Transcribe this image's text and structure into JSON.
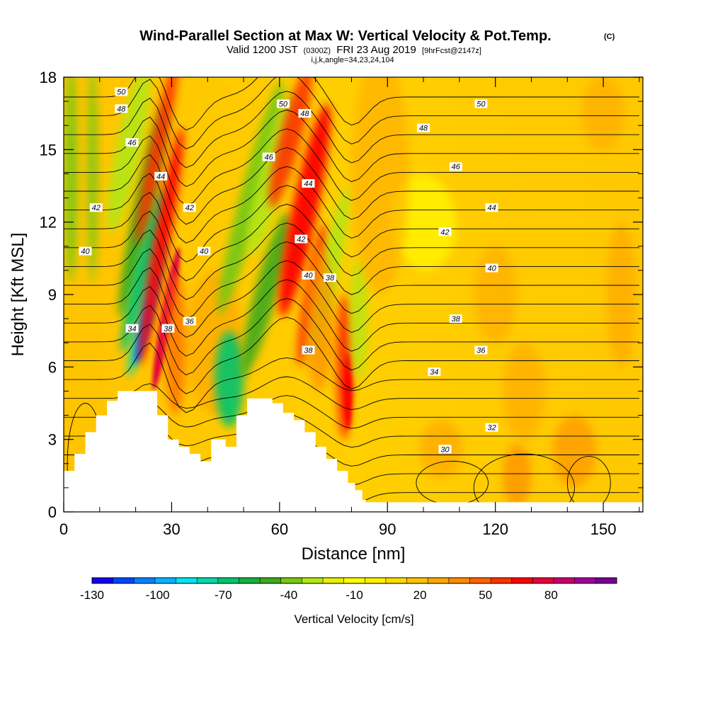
{
  "chart_data": {
    "type": "heatmap",
    "title": "Wind-Parallel Section at Max W: Vertical Velocity & Pot.Temp.",
    "title_mark": "(C)",
    "subtitle_prefix": "Valid 1200 JST",
    "subtitle_utc": "(0300Z)",
    "subtitle_date": "FRI 23 Aug 2019",
    "subtitle_fcst": "[9hrFcst@2147z]",
    "subtitle2": "i,j,k,angle=34,23,24,104",
    "xlabel": "Distance [nm]",
    "ylabel": "Height [Kft MSL]",
    "xlim": [
      0,
      161
    ],
    "ylim": [
      0,
      18
    ],
    "x_ticks": [
      "0",
      "30",
      "60",
      "90",
      "120",
      "150"
    ],
    "y_ticks": [
      "0",
      "3",
      "6",
      "9",
      "12",
      "15",
      "18"
    ],
    "colorbar": {
      "label": "Vertical Velocity [cm/s]",
      "tick_labels": [
        "-130",
        "-100",
        "-70",
        "-40",
        "-10",
        "20",
        "50",
        "80"
      ],
      "colors": [
        "#1400f0",
        "#0046ff",
        "#0082ff",
        "#00b4ff",
        "#00e6f0",
        "#00d8aa",
        "#00c46e",
        "#14b03c",
        "#3caa1e",
        "#78c814",
        "#b4e614",
        "#e6f000",
        "#ffff00",
        "#fff000",
        "#ffdc00",
        "#ffc300",
        "#ffa800",
        "#ff8c00",
        "#ff6400",
        "#ff3200",
        "#ff0000",
        "#e6003c",
        "#c8006e",
        "#a0009b",
        "#780096"
      ]
    },
    "terrain_kft": [
      [
        0,
        1.7
      ],
      [
        3,
        1.7
      ],
      [
        3,
        2.4
      ],
      [
        6,
        2.4
      ],
      [
        6,
        3.3
      ],
      [
        9,
        3.3
      ],
      [
        9,
        4.0
      ],
      [
        12,
        4.0
      ],
      [
        12,
        4.6
      ],
      [
        15,
        4.6
      ],
      [
        15,
        5.0
      ],
      [
        26,
        5.0
      ],
      [
        26,
        4.0
      ],
      [
        29,
        4.0
      ],
      [
        29,
        3.0
      ],
      [
        32,
        3.0
      ],
      [
        32,
        2.7
      ],
      [
        35,
        2.7
      ],
      [
        35,
        2.4
      ],
      [
        38,
        2.4
      ],
      [
        38,
        2.1
      ],
      [
        41,
        2.1
      ],
      [
        41,
        3.0
      ],
      [
        45,
        3.0
      ],
      [
        45,
        2.7
      ],
      [
        48,
        2.7
      ],
      [
        48,
        4.0
      ],
      [
        51,
        4.0
      ],
      [
        51,
        4.7
      ],
      [
        58,
        4.7
      ],
      [
        58,
        4.5
      ],
      [
        61,
        4.5
      ],
      [
        61,
        4.1
      ],
      [
        64,
        4.1
      ],
      [
        64,
        3.8
      ],
      [
        67,
        3.8
      ],
      [
        67,
        3.3
      ],
      [
        70,
        3.3
      ],
      [
        70,
        2.7
      ],
      [
        73,
        2.7
      ],
      [
        73,
        2.2
      ],
      [
        76,
        2.2
      ],
      [
        76,
        1.7
      ],
      [
        79,
        1.7
      ],
      [
        79,
        1.2
      ],
      [
        81,
        1.2
      ],
      [
        81,
        0.9
      ],
      [
        83,
        0.9
      ],
      [
        83,
        0.5
      ],
      [
        84,
        0.5
      ],
      [
        84,
        0.4
      ],
      [
        161,
        0.4
      ]
    ],
    "theta_contour_labels": [
      {
        "text": "50",
        "x": 16,
        "y": 17.4
      },
      {
        "text": "48",
        "x": 16,
        "y": 16.7
      },
      {
        "text": "46",
        "x": 19,
        "y": 15.3
      },
      {
        "text": "44",
        "x": 27,
        "y": 13.9
      },
      {
        "text": "42",
        "x": 9,
        "y": 12.6
      },
      {
        "text": "40",
        "x": 6,
        "y": 10.8
      },
      {
        "text": "34",
        "x": 19,
        "y": 7.6
      },
      {
        "text": "38",
        "x": 29,
        "y": 7.6
      },
      {
        "text": "36",
        "x": 35,
        "y": 7.9
      },
      {
        "text": "42",
        "x": 35,
        "y": 12.6
      },
      {
        "text": "40",
        "x": 39,
        "y": 10.8
      },
      {
        "text": "50",
        "x": 61,
        "y": 16.9
      },
      {
        "text": "48",
        "x": 67,
        "y": 16.5
      },
      {
        "text": "46",
        "x": 57,
        "y": 14.7
      },
      {
        "text": "44",
        "x": 68,
        "y": 13.6
      },
      {
        "text": "42",
        "x": 66,
        "y": 11.3
      },
      {
        "text": "40",
        "x": 68,
        "y": 9.8
      },
      {
        "text": "38",
        "x": 74,
        "y": 9.7
      },
      {
        "text": "38",
        "x": 68,
        "y": 6.7
      },
      {
        "text": "50",
        "x": 116,
        "y": 16.9
      },
      {
        "text": "48",
        "x": 100,
        "y": 15.9
      },
      {
        "text": "46",
        "x": 109,
        "y": 14.3
      },
      {
        "text": "44",
        "x": 119,
        "y": 12.6
      },
      {
        "text": "42",
        "x": 106,
        "y": 11.6
      },
      {
        "text": "40",
        "x": 119,
        "y": 10.1
      },
      {
        "text": "38",
        "x": 109,
        "y": 8.0
      },
      {
        "text": "36",
        "x": 116,
        "y": 6.7
      },
      {
        "text": "34",
        "x": 103,
        "y": 5.8
      },
      {
        "text": "32",
        "x": 119,
        "y": 3.5
      },
      {
        "text": "30",
        "x": 106,
        "y": 2.6
      }
    ]
  }
}
